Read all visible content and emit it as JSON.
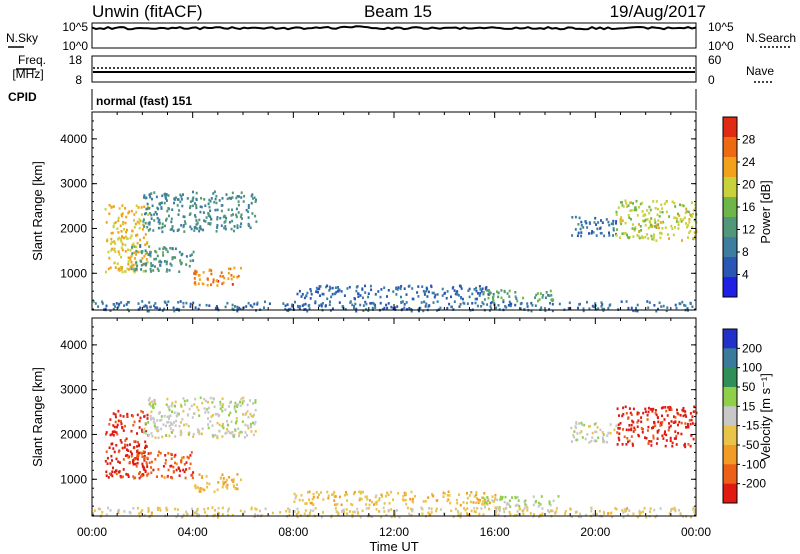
{
  "header": {
    "radar_title": "Unwin (fitACF)",
    "beam_label": "Beam 15",
    "date_label": "19/Aug/2017"
  },
  "strips": {
    "nsky": {
      "label": "N.Sky",
      "left_ticks": [
        "10^5",
        "10^0"
      ],
      "right_ticks": [
        "10^5",
        "10^0"
      ],
      "right_label": "N.Search"
    },
    "freq": {
      "label_line1": "Freq.",
      "label_line2": "[MHz]",
      "left_ticks": [
        "18",
        "8"
      ],
      "right_ticks": [
        "60",
        "0"
      ],
      "right_label": "Nave"
    },
    "cpid": {
      "label": "CPID",
      "value_text": "normal (fast) 151"
    }
  },
  "colors": {
    "power": [
      "#1f1fe6",
      "#2a56b4",
      "#3d7ea0",
      "#52977a",
      "#6fb64a",
      "#c9d23a",
      "#f2a21a",
      "#ee6a12",
      "#e02a14"
    ],
    "velocity": [
      "#2232c8",
      "#3a7a9a",
      "#2f8f57",
      "#8fcf4a",
      "#c8c8c8",
      "#e9c34a",
      "#f29b25",
      "#ec6018",
      "#e01a12"
    ]
  },
  "chart_data": [
    {
      "type": "heatmap",
      "panel": "power",
      "ylabel": "Slant Range [km]",
      "ylim": [
        180,
        4600
      ],
      "y_ticks": [
        "1000",
        "2000",
        "3000",
        "4000"
      ],
      "x_ticks": [
        "00:00",
        "04:00",
        "08:00",
        "12:00",
        "16:00",
        "20:00",
        "00:00"
      ],
      "xlim_hours": [
        0,
        24
      ],
      "colorbar": {
        "label": "Power [dB]",
        "tick_labels": [
          "4",
          "8",
          "12",
          "16",
          "20",
          "24",
          "28"
        ],
        "range": [
          0,
          32
        ]
      },
      "regions": [
        {
          "t0": 0.5,
          "t1": 2.2,
          "r0": 1050,
          "r1": 2550,
          "value": 22
        },
        {
          "t0": 1.5,
          "t1": 4.0,
          "r0": 1050,
          "r1": 1650,
          "value": 12
        },
        {
          "t0": 4.0,
          "t1": 5.9,
          "r0": 750,
          "r1": 1150,
          "value": 26
        },
        {
          "t0": 2.0,
          "t1": 6.5,
          "r0": 1950,
          "r1": 2850,
          "value": 11
        },
        {
          "t0": 8.0,
          "t1": 16.0,
          "r0": 450,
          "r1": 750,
          "value": 7
        },
        {
          "t0": 15.5,
          "t1": 18.5,
          "r0": 400,
          "r1": 650,
          "value": 13
        },
        {
          "t0": 19.0,
          "t1": 20.8,
          "r0": 1850,
          "r1": 2300,
          "value": 8
        },
        {
          "t0": 20.8,
          "t1": 24.0,
          "r0": 1750,
          "r1": 2650,
          "value": 19
        },
        {
          "t0": 0.0,
          "t1": 24.0,
          "r0": 180,
          "r1": 400,
          "value": 8
        }
      ]
    },
    {
      "type": "heatmap",
      "panel": "velocity",
      "ylabel": "Slant Range [km]",
      "ylim": [
        180,
        4600
      ],
      "y_ticks": [
        "1000",
        "2000",
        "3000",
        "4000"
      ],
      "x_ticks": [
        "00:00",
        "04:00",
        "08:00",
        "12:00",
        "16:00",
        "20:00",
        "00:00"
      ],
      "xlabel": "Time UT",
      "xlim_hours": [
        0,
        24
      ],
      "colorbar": {
        "label": "Velocity [m s⁻¹]",
        "tick_labels": [
          "200",
          "100",
          "50",
          "15",
          "-15",
          "-50",
          "-100",
          "-200"
        ],
        "range": [
          -250,
          250
        ]
      },
      "regions": [
        {
          "t0": 0.5,
          "t1": 2.2,
          "r0": 1050,
          "r1": 2550,
          "value": -220
        },
        {
          "t0": 1.5,
          "t1": 4.0,
          "r0": 1050,
          "r1": 1650,
          "value": -180
        },
        {
          "t0": 4.0,
          "t1": 5.9,
          "r0": 750,
          "r1": 1150,
          "value": -80
        },
        {
          "t0": 2.0,
          "t1": 6.5,
          "r0": 1950,
          "r1": 2850,
          "value": 0
        },
        {
          "t0": 8.0,
          "t1": 16.0,
          "r0": 450,
          "r1": 750,
          "value": -70
        },
        {
          "t0": 15.5,
          "t1": 18.5,
          "r0": 400,
          "r1": 650,
          "value": 30
        },
        {
          "t0": 19.0,
          "t1": 20.8,
          "r0": 1850,
          "r1": 2300,
          "value": 0
        },
        {
          "t0": 20.8,
          "t1": 24.0,
          "r0": 1750,
          "r1": 2650,
          "value": -220
        },
        {
          "t0": 0.0,
          "t1": 24.0,
          "r0": 180,
          "r1": 400,
          "value": -40
        }
      ]
    }
  ]
}
